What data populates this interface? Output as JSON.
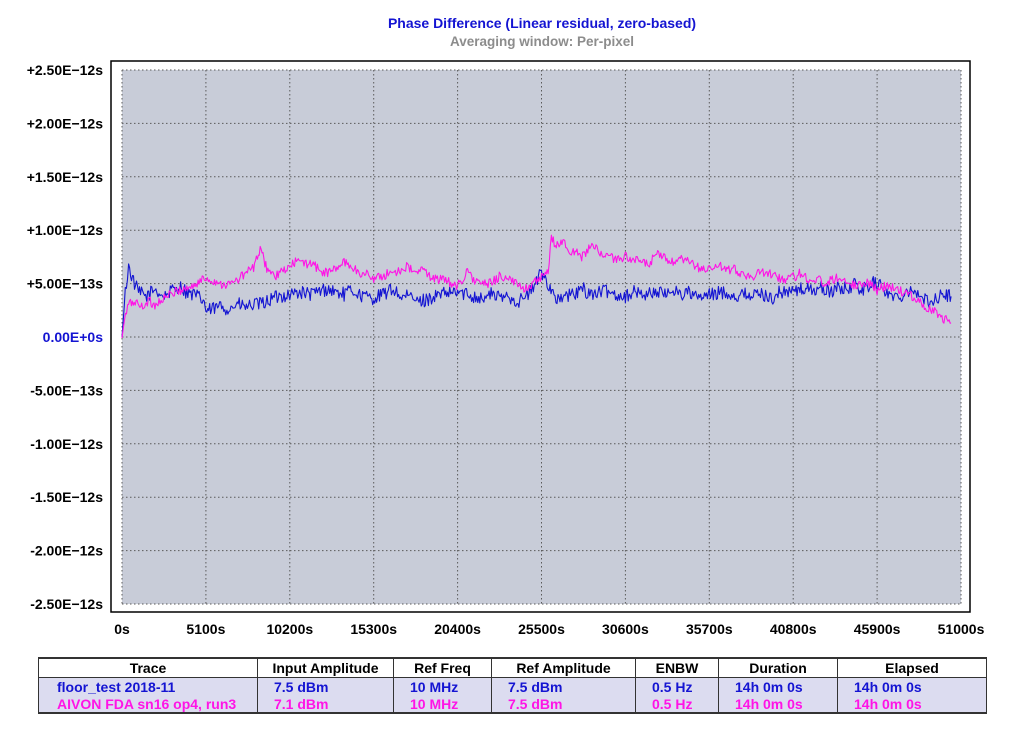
{
  "colors": {
    "plot_bg": "#c8ccd8",
    "grid": "#5a5a5a",
    "series_blue": "#1414d2",
    "series_magenta": "#ff14e6",
    "title": "#1414d2",
    "subtitle": "#8c8c8c",
    "legend_row_bg": "#dcdcf0"
  },
  "chart_data": {
    "type": "line",
    "title": "Phase Difference (Linear residual, zero-based)",
    "subtitle": "Averaging window: Per-pixel",
    "xlabel": "",
    "ylabel": "",
    "xlim": [
      0,
      51000
    ],
    "ylim": [
      -2.5e-12,
      2.5e-12
    ],
    "grid": true,
    "x_ticks": [
      "0s",
      "5100s",
      "10200s",
      "15300s",
      "20400s",
      "25500s",
      "30600s",
      "35700s",
      "40800s",
      "45900s",
      "51000s"
    ],
    "y_ticks": [
      "+2.50E−12s",
      "+2.00E−12s",
      "+1.50E−12s",
      "+1.00E−12s",
      "+5.00E−13s",
      "0.00E+0s",
      "-5.00E−13s",
      "-1.00E−12s",
      "-1.50E−12s",
      "-2.00E−12s",
      "-2.50E−12s"
    ],
    "y_tick_values": [
      2.5e-12,
      2e-12,
      1.5e-12,
      1e-12,
      5e-13,
      0,
      -5e-13,
      -1e-12,
      -1.5e-12,
      -2e-12,
      -2.5e-12
    ],
    "x_end": 50400,
    "series": [
      {
        "name": "floor_test 2018-11",
        "color": "#1414d2",
        "points": [
          [
            0,
            0.0
          ],
          [
            200,
            4.2e-13
          ],
          [
            400,
            6.6e-13
          ],
          [
            700,
            5.2e-13
          ],
          [
            1000,
            4.2e-13
          ],
          [
            1500,
            3.8e-13
          ],
          [
            2000,
            4.5e-13
          ],
          [
            2500,
            3.8e-13
          ],
          [
            3000,
            4.3e-13
          ],
          [
            3500,
            4.8e-13
          ],
          [
            4000,
            4.1e-13
          ],
          [
            4500,
            3.9e-13
          ],
          [
            5000,
            3.3e-13
          ],
          [
            5100,
            2.4e-13
          ],
          [
            5500,
            2.6e-13
          ],
          [
            6000,
            2.9e-13
          ],
          [
            6500,
            2.6e-13
          ],
          [
            7000,
            3.1e-13
          ],
          [
            7500,
            2.8e-13
          ],
          [
            8000,
            3e-13
          ],
          [
            8500,
            3.1e-13
          ],
          [
            9000,
            3.5e-13
          ],
          [
            9500,
            3.8e-13
          ],
          [
            10200,
            4e-13
          ],
          [
            10800,
            4.2e-13
          ],
          [
            11500,
            4e-13
          ],
          [
            12000,
            4.3e-13
          ],
          [
            12500,
            4.5e-13
          ],
          [
            13000,
            4.2e-13
          ],
          [
            13500,
            4e-13
          ],
          [
            14000,
            4.4e-13
          ],
          [
            14500,
            3.9e-13
          ],
          [
            15300,
            3.6e-13
          ],
          [
            16000,
            4.1e-13
          ],
          [
            16500,
            4.5e-13
          ],
          [
            17000,
            3.7e-13
          ],
          [
            17500,
            3.8e-13
          ],
          [
            18000,
            3.3e-13
          ],
          [
            18500,
            3.5e-13
          ],
          [
            19000,
            3.8e-13
          ],
          [
            19500,
            4e-13
          ],
          [
            20400,
            4.2e-13
          ],
          [
            21000,
            4e-13
          ],
          [
            21500,
            3.8e-13
          ],
          [
            22000,
            3.6e-13
          ],
          [
            22500,
            4.1e-13
          ],
          [
            23000,
            3.6e-13
          ],
          [
            23500,
            3.9e-13
          ],
          [
            24000,
            3.3e-13
          ],
          [
            24500,
            3.7e-13
          ],
          [
            25000,
            4.6e-13
          ],
          [
            25500,
            6.1e-13
          ],
          [
            25900,
            5e-13
          ],
          [
            26500,
            3.4e-13
          ],
          [
            27000,
            3.8e-13
          ],
          [
            27500,
            4e-13
          ],
          [
            28000,
            4.5e-13
          ],
          [
            28500,
            4e-13
          ],
          [
            29000,
            4.2e-13
          ],
          [
            29500,
            4.3e-13
          ],
          [
            30000,
            4e-13
          ],
          [
            30600,
            3.8e-13
          ],
          [
            31000,
            4.2e-13
          ],
          [
            31500,
            4.1e-13
          ],
          [
            32000,
            4e-13
          ],
          [
            32500,
            4.3e-13
          ],
          [
            33000,
            3.9e-13
          ],
          [
            33500,
            4.5e-13
          ],
          [
            34000,
            4e-13
          ],
          [
            34500,
            4.2e-13
          ],
          [
            35000,
            3.6e-13
          ],
          [
            35700,
            3.9e-13
          ],
          [
            36500,
            4.2e-13
          ],
          [
            37000,
            4e-13
          ],
          [
            37500,
            3.8e-13
          ],
          [
            38000,
            4.1e-13
          ],
          [
            38500,
            3.9e-13
          ],
          [
            39000,
            4e-13
          ],
          [
            39500,
            3.6e-13
          ],
          [
            40000,
            4.2e-13
          ],
          [
            40800,
            4.3e-13
          ],
          [
            41500,
            4.5e-13
          ],
          [
            42000,
            4.4e-13
          ],
          [
            42500,
            4.6e-13
          ],
          [
            43000,
            4.2e-13
          ],
          [
            43500,
            4.6e-13
          ],
          [
            44000,
            4.5e-13
          ],
          [
            44500,
            4.9e-13
          ],
          [
            45000,
            4.4e-13
          ],
          [
            45500,
            5e-13
          ],
          [
            45900,
            5.1e-13
          ],
          [
            46500,
            4.2e-13
          ],
          [
            47000,
            3.6e-13
          ],
          [
            47500,
            4.1e-13
          ],
          [
            48000,
            4.6e-13
          ],
          [
            48500,
            3.7e-13
          ],
          [
            49000,
            3.3e-13
          ],
          [
            49500,
            3.6e-13
          ],
          [
            50000,
            4e-13
          ],
          [
            50400,
            3.8e-13
          ]
        ]
      },
      {
        "name": "AIVON FDA sn16 op4, run3",
        "color": "#ff14e6",
        "points": [
          [
            0,
            -1e-14
          ],
          [
            150,
            1.6e-13
          ],
          [
            400,
            3.1e-13
          ],
          [
            800,
            3.3e-13
          ],
          [
            1200,
            2.8e-13
          ],
          [
            1600,
            3.4e-13
          ],
          [
            2000,
            3e-13
          ],
          [
            2500,
            3.6e-13
          ],
          [
            3000,
            4e-13
          ],
          [
            3500,
            4.4e-13
          ],
          [
            4000,
            4.6e-13
          ],
          [
            4500,
            4.9e-13
          ],
          [
            5000,
            5.5e-13
          ],
          [
            5500,
            5.3e-13
          ],
          [
            6000,
            5e-13
          ],
          [
            6500,
            4.9e-13
          ],
          [
            7000,
            5.3e-13
          ],
          [
            7500,
            6e-13
          ],
          [
            8000,
            6.5e-13
          ],
          [
            8400,
            8.2e-13
          ],
          [
            8800,
            6.5e-13
          ],
          [
            9300,
            5.6e-13
          ],
          [
            9800,
            6.2e-13
          ],
          [
            10200,
            6.5e-13
          ],
          [
            10600,
            7.2e-13
          ],
          [
            11000,
            6.8e-13
          ],
          [
            11500,
            7e-13
          ],
          [
            12000,
            6.2e-13
          ],
          [
            12500,
            6e-13
          ],
          [
            13000,
            6.4e-13
          ],
          [
            13500,
            7e-13
          ],
          [
            14000,
            6.6e-13
          ],
          [
            14500,
            5.8e-13
          ],
          [
            15000,
            6e-13
          ],
          [
            15300,
            5.4e-13
          ],
          [
            15800,
            5.7e-13
          ],
          [
            16300,
            6e-13
          ],
          [
            16800,
            6.2e-13
          ],
          [
            17300,
            6.6e-13
          ],
          [
            17800,
            6e-13
          ],
          [
            18300,
            6.3e-13
          ],
          [
            18800,
            5.6e-13
          ],
          [
            19300,
            5.4e-13
          ],
          [
            19800,
            5.2e-13
          ],
          [
            20400,
            4.8e-13
          ],
          [
            21000,
            6.1e-13
          ],
          [
            21500,
            5.2e-13
          ],
          [
            22000,
            4.9e-13
          ],
          [
            22500,
            5.1e-13
          ],
          [
            23000,
            5.8e-13
          ],
          [
            23500,
            5.3e-13
          ],
          [
            24000,
            5e-13
          ],
          [
            24500,
            4.6e-13
          ],
          [
            25000,
            5e-13
          ],
          [
            25500,
            5.5e-13
          ],
          [
            25900,
            6e-13
          ],
          [
            26100,
            9.4e-13
          ],
          [
            26400,
            8.5e-13
          ],
          [
            26800,
            9.1e-13
          ],
          [
            27200,
            7.8e-13
          ],
          [
            27600,
            8e-13
          ],
          [
            28000,
            7.5e-13
          ],
          [
            28500,
            8.6e-13
          ],
          [
            29000,
            8e-13
          ],
          [
            29500,
            7.6e-13
          ],
          [
            30000,
            7.2e-13
          ],
          [
            30600,
            7.6e-13
          ],
          [
            31000,
            7.3e-13
          ],
          [
            31500,
            7e-13
          ],
          [
            32000,
            6.8e-13
          ],
          [
            32500,
            7.7e-13
          ],
          [
            33000,
            7.4e-13
          ],
          [
            33500,
            6.9e-13
          ],
          [
            34000,
            7.2e-13
          ],
          [
            34500,
            7e-13
          ],
          [
            35000,
            6.5e-13
          ],
          [
            35700,
            6.3e-13
          ],
          [
            36200,
            6.8e-13
          ],
          [
            36700,
            6.2e-13
          ],
          [
            37200,
            6.3e-13
          ],
          [
            37700,
            6e-13
          ],
          [
            38200,
            5.6e-13
          ],
          [
            38700,
            5.9e-13
          ],
          [
            39200,
            6e-13
          ],
          [
            39700,
            5.8e-13
          ],
          [
            40200,
            5.4e-13
          ],
          [
            40800,
            5.6e-13
          ],
          [
            41300,
            6e-13
          ],
          [
            41800,
            5.3e-13
          ],
          [
            42300,
            5.4e-13
          ],
          [
            42800,
            5e-13
          ],
          [
            43300,
            5.5e-13
          ],
          [
            43800,
            5.6e-13
          ],
          [
            44300,
            5e-13
          ],
          [
            44800,
            4.8e-13
          ],
          [
            45300,
            5.2e-13
          ],
          [
            45900,
            4.4e-13
          ],
          [
            46400,
            4.8e-13
          ],
          [
            46900,
            4.6e-13
          ],
          [
            47400,
            4.2e-13
          ],
          [
            47900,
            4e-13
          ],
          [
            48400,
            3.4e-13
          ],
          [
            48900,
            2.8e-13
          ],
          [
            49400,
            2.4e-13
          ],
          [
            49900,
            1.8e-13
          ],
          [
            50400,
            1.3e-13
          ]
        ]
      }
    ]
  },
  "legend_table": {
    "headers": [
      "Trace",
      "Input Amplitude",
      "Ref Freq",
      "Ref Amplitude",
      "ENBW",
      "Duration",
      "Elapsed"
    ],
    "rows": [
      [
        "floor_test 2018-11",
        "7.5 dBm",
        "10 MHz",
        "7.5 dBm",
        "0.5 Hz",
        "14h 0m 0s",
        "14h 0m 0s"
      ],
      [
        "AIVON FDA sn16 op4, run3",
        "7.1 dBm",
        "10 MHz",
        "7.5 dBm",
        "0.5 Hz",
        "14h 0m 0s",
        "14h 0m 0s"
      ]
    ]
  }
}
